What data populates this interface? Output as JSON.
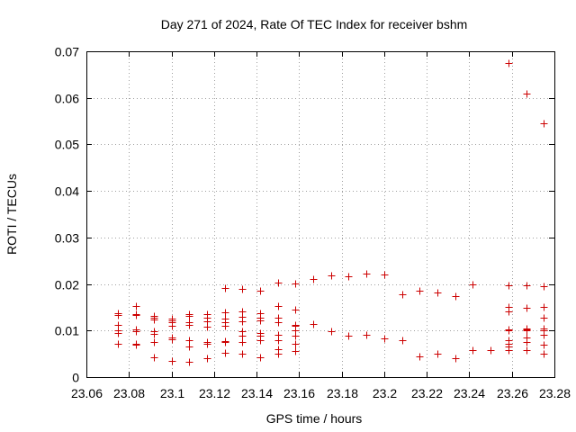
{
  "chart_data": {
    "type": "scatter",
    "title": "Day 271 of 2024, Rate Of TEC Index for receiver bshm",
    "xlabel": "GPS time / hours",
    "ylabel": "ROTI / TECUs",
    "xlim": [
      23.06,
      23.28
    ],
    "ylim": [
      0,
      0.07
    ],
    "x_ticks": [
      23.06,
      23.08,
      23.1,
      23.12,
      23.14,
      23.16,
      23.18,
      23.2,
      23.22,
      23.24,
      23.26,
      23.28
    ],
    "x_tick_labels": [
      "23.06",
      "23.08",
      "23.1",
      "23.12",
      "23.14",
      "23.16",
      "23.18",
      "23.2",
      "23.22",
      "23.24",
      "23.26",
      "23.28"
    ],
    "y_ticks": [
      0,
      0.01,
      0.02,
      0.03,
      0.04,
      0.05,
      0.06,
      0.07
    ],
    "y_tick_labels": [
      "0",
      "0.01",
      "0.02",
      "0.03",
      "0.04",
      "0.05",
      "0.06",
      "0.07"
    ],
    "grid": true,
    "marker": "+",
    "color": "#cc0000",
    "series": [
      {
        "name": "ROTI",
        "points": [
          [
            23.075,
            0.0138
          ],
          [
            23.075,
            0.0133
          ],
          [
            23.075,
            0.0112
          ],
          [
            23.075,
            0.01
          ],
          [
            23.075,
            0.0095
          ],
          [
            23.075,
            0.0072
          ],
          [
            23.0833,
            0.0152
          ],
          [
            23.0833,
            0.0135
          ],
          [
            23.0833,
            0.0133
          ],
          [
            23.0833,
            0.0103
          ],
          [
            23.0833,
            0.0098
          ],
          [
            23.0833,
            0.0072
          ],
          [
            23.0833,
            0.007
          ],
          [
            23.0917,
            0.0132
          ],
          [
            23.0917,
            0.0128
          ],
          [
            23.0917,
            0.0123
          ],
          [
            23.0917,
            0.0098
          ],
          [
            23.0917,
            0.0093
          ],
          [
            23.0917,
            0.0075
          ],
          [
            23.0917,
            0.0043
          ],
          [
            23.1,
            0.0125
          ],
          [
            23.1,
            0.0122
          ],
          [
            23.1,
            0.0118
          ],
          [
            23.1,
            0.011
          ],
          [
            23.1,
            0.0085
          ],
          [
            23.1,
            0.0082
          ],
          [
            23.1,
            0.0035
          ],
          [
            23.1083,
            0.0135
          ],
          [
            23.1083,
            0.0132
          ],
          [
            23.1083,
            0.0118
          ],
          [
            23.1083,
            0.0113
          ],
          [
            23.1083,
            0.008
          ],
          [
            23.1083,
            0.0065
          ],
          [
            23.1083,
            0.0033
          ],
          [
            23.1167,
            0.0135
          ],
          [
            23.1167,
            0.0128
          ],
          [
            23.1167,
            0.012
          ],
          [
            23.1167,
            0.0108
          ],
          [
            23.1167,
            0.0075
          ],
          [
            23.1167,
            0.0072
          ],
          [
            23.1167,
            0.004
          ],
          [
            23.125,
            0.0192
          ],
          [
            23.125,
            0.014
          ],
          [
            23.125,
            0.0125
          ],
          [
            23.125,
            0.0118
          ],
          [
            23.125,
            0.011
          ],
          [
            23.125,
            0.0078
          ],
          [
            23.125,
            0.0075
          ],
          [
            23.125,
            0.0052
          ],
          [
            23.1333,
            0.019
          ],
          [
            23.1333,
            0.0142
          ],
          [
            23.1333,
            0.013
          ],
          [
            23.1333,
            0.012
          ],
          [
            23.1333,
            0.0098
          ],
          [
            23.1333,
            0.0088
          ],
          [
            23.1333,
            0.0075
          ],
          [
            23.1333,
            0.005
          ],
          [
            23.1417,
            0.0185
          ],
          [
            23.1417,
            0.0138
          ],
          [
            23.1417,
            0.0128
          ],
          [
            23.1417,
            0.0122
          ],
          [
            23.1417,
            0.0095
          ],
          [
            23.1417,
            0.0088
          ],
          [
            23.1417,
            0.008
          ],
          [
            23.1417,
            0.0042
          ],
          [
            23.15,
            0.0203
          ],
          [
            23.15,
            0.0152
          ],
          [
            23.15,
            0.0128
          ],
          [
            23.15,
            0.0118
          ],
          [
            23.15,
            0.009
          ],
          [
            23.15,
            0.008
          ],
          [
            23.15,
            0.006
          ],
          [
            23.15,
            0.005
          ],
          [
            23.1583,
            0.0202
          ],
          [
            23.1583,
            0.0145
          ],
          [
            23.1583,
            0.0113
          ],
          [
            23.1583,
            0.011
          ],
          [
            23.1583,
            0.01
          ],
          [
            23.1583,
            0.0088
          ],
          [
            23.1583,
            0.0072
          ],
          [
            23.1583,
            0.0057
          ],
          [
            23.1667,
            0.021
          ],
          [
            23.1667,
            0.0115
          ],
          [
            23.175,
            0.0218
          ],
          [
            23.175,
            0.0098
          ],
          [
            23.1833,
            0.0217
          ],
          [
            23.1833,
            0.0088
          ],
          [
            23.1917,
            0.0222
          ],
          [
            23.1917,
            0.009
          ],
          [
            23.2,
            0.022
          ],
          [
            23.2,
            0.0083
          ],
          [
            23.2083,
            0.0178
          ],
          [
            23.2083,
            0.008
          ],
          [
            23.2167,
            0.0185
          ],
          [
            23.2167,
            0.0045
          ],
          [
            23.225,
            0.0182
          ],
          [
            23.225,
            0.005
          ],
          [
            23.2333,
            0.0175
          ],
          [
            23.2333,
            0.004
          ],
          [
            23.2417,
            0.02
          ],
          [
            23.2417,
            0.0058
          ],
          [
            23.25,
            0.0058
          ],
          [
            23.2583,
            0.0675
          ],
          [
            23.2583,
            0.0198
          ],
          [
            23.2583,
            0.015
          ],
          [
            23.2583,
            0.0142
          ],
          [
            23.2583,
            0.0103
          ],
          [
            23.2583,
            0.01
          ],
          [
            23.2583,
            0.008
          ],
          [
            23.2583,
            0.0072
          ],
          [
            23.2583,
            0.0065
          ],
          [
            23.2583,
            0.0058
          ],
          [
            23.2667,
            0.061
          ],
          [
            23.2667,
            0.0198
          ],
          [
            23.2667,
            0.0148
          ],
          [
            23.2667,
            0.0105
          ],
          [
            23.2667,
            0.0102
          ],
          [
            23.2667,
            0.01
          ],
          [
            23.2667,
            0.0085
          ],
          [
            23.2667,
            0.0075
          ],
          [
            23.2667,
            0.0058
          ],
          [
            23.275,
            0.0545
          ],
          [
            23.275,
            0.0195
          ],
          [
            23.275,
            0.015
          ],
          [
            23.275,
            0.0128
          ],
          [
            23.275,
            0.0105
          ],
          [
            23.275,
            0.01
          ],
          [
            23.275,
            0.009
          ],
          [
            23.275,
            0.007
          ],
          [
            23.275,
            0.005
          ]
        ]
      }
    ]
  }
}
